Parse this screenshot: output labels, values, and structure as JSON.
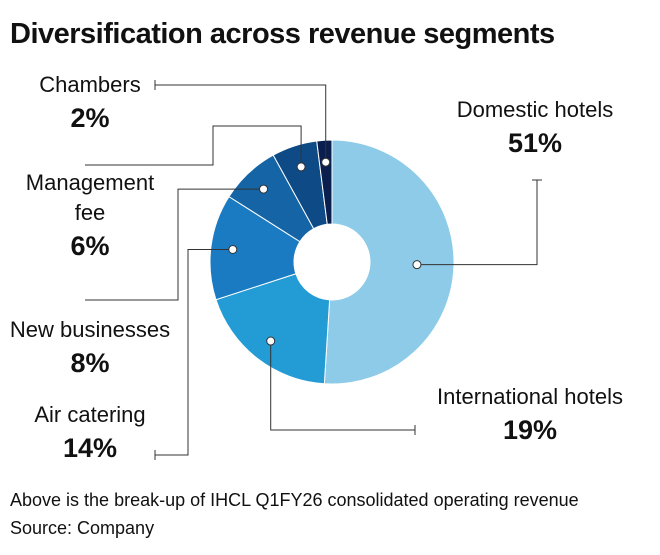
{
  "chart_data": {
    "type": "donut",
    "title": "Diversification across revenue segments",
    "categories": [
      "Domestic hotels",
      "International hotels",
      "Air catering",
      "New businesses",
      "Management fee",
      "Chambers"
    ],
    "values": [
      51,
      19,
      14,
      8,
      6,
      2
    ],
    "value_labels": [
      "51%",
      "19%",
      "14%",
      "8%",
      "6%",
      "2%"
    ],
    "colors": [
      "#8dcbe8",
      "#239bd5",
      "#1a7bc2",
      "#1564a6",
      "#0e4b86",
      "#0b1f4e"
    ],
    "note": "Above is the break-up of IHCL Q1FY26 consolidated operating revenue",
    "source": "Source: Company"
  }
}
